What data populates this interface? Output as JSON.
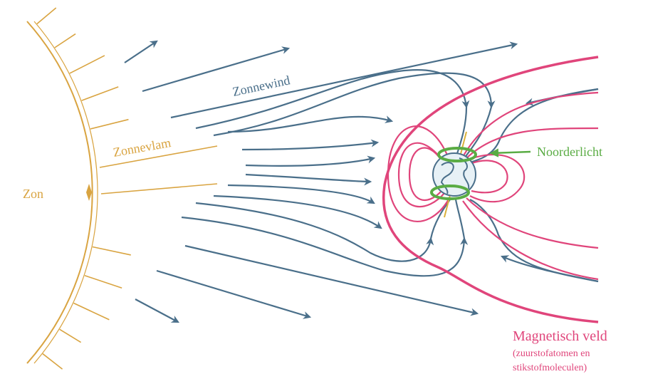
{
  "labels": {
    "solar_wind": "Zonnewind",
    "solar_flare": "Zonnevlam",
    "sun": "Zon",
    "aurora": "Noorderlicht",
    "magnetic_field": "Magnetisch veld",
    "note_line_1": "(zuurstofatomen en",
    "note_line_2": "stikstofmoleculen)"
  }
}
